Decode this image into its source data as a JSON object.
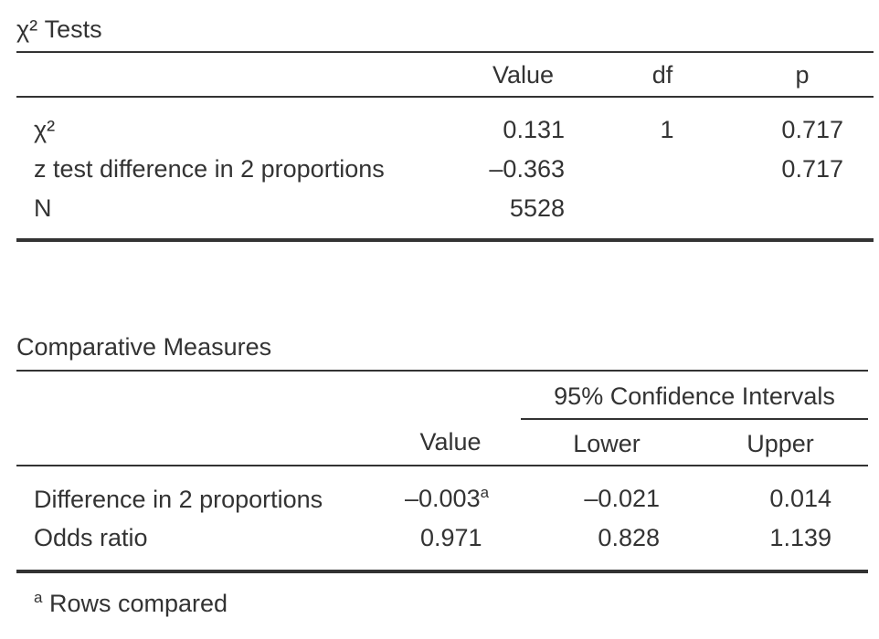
{
  "chi_tests": {
    "title": "χ² Tests",
    "headers": {
      "value": "Value",
      "df": "df",
      "p": "p"
    },
    "rows": [
      {
        "label": "χ²",
        "value": "0.131",
        "df": "1",
        "p": "0.717"
      },
      {
        "label": "z test difference in 2 proportions",
        "value": "–0.363",
        "df": "",
        "p": "0.717"
      },
      {
        "label": "N",
        "value": "5528",
        "df": "",
        "p": ""
      }
    ]
  },
  "comparative": {
    "title": "Comparative Measures",
    "ci_header": "95% Confidence Intervals",
    "headers": {
      "value": "Value",
      "lower": "Lower",
      "upper": "Upper"
    },
    "rows": [
      {
        "label": "Difference in 2 proportions",
        "value": "–0.003",
        "footnote_mark": "a",
        "lower": "–0.021",
        "upper": "0.014"
      },
      {
        "label": "Odds ratio",
        "value": "0.971",
        "footnote_mark": "",
        "lower": "0.828",
        "upper": "1.139"
      }
    ],
    "footnote": {
      "mark": "a",
      "text": "Rows compared"
    }
  }
}
